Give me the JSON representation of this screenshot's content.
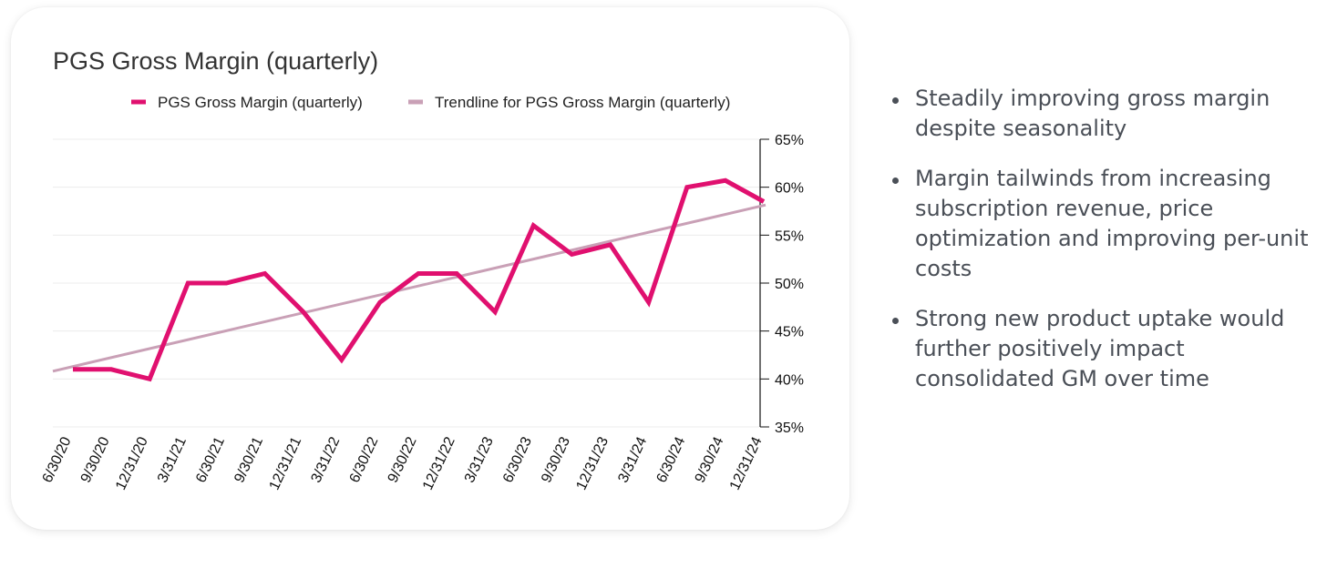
{
  "chart_data": {
    "type": "line",
    "title": "PGS Gross Margin (quarterly)",
    "categories": [
      "6/30/20",
      "9/30/20",
      "12/31/20",
      "3/31/21",
      "6/30/21",
      "9/30/21",
      "12/31/21",
      "3/31/22",
      "6/30/22",
      "9/30/22",
      "12/31/22",
      "3/31/23",
      "6/30/23",
      "9/30/23",
      "12/31/23",
      "3/31/24",
      "6/30/24",
      "9/30/24",
      "12/31/24"
    ],
    "series": [
      {
        "name": "PGS Gross Margin (quarterly)",
        "color": "#e0106f",
        "values": [
          41,
          41,
          40,
          50,
          50,
          51,
          47,
          42,
          48,
          51,
          51,
          47,
          56,
          53,
          54,
          48,
          60,
          60.7,
          58.5
        ]
      },
      {
        "name": "Trendline for PGS Gross Margin (quarterly)",
        "color": "#c9a0b6",
        "kind": "trendline",
        "values": [
          41.3,
          42.2,
          43.2,
          44.1,
          45.0,
          46.0,
          46.9,
          47.8,
          48.8,
          49.7,
          50.6,
          51.6,
          52.5,
          53.4,
          54.4,
          55.3,
          56.2,
          57.2,
          58.1
        ]
      }
    ],
    "yticks": [
      "35%",
      "40%",
      "45%",
      "50%",
      "55%",
      "60%",
      "65%"
    ],
    "ytick_values": [
      35,
      40,
      45,
      50,
      55,
      60,
      65
    ],
    "ylim": [
      35,
      65
    ],
    "y_axis_side": "right",
    "grid": true,
    "legend_position": "top"
  },
  "bullets": [
    "Steadily improving gross margin despite seasonality",
    "Margin tailwinds from increasing subscription revenue, price optimization and improving per-unit costs",
    "Strong new product uptake would further positively impact consolidated GM over time"
  ]
}
